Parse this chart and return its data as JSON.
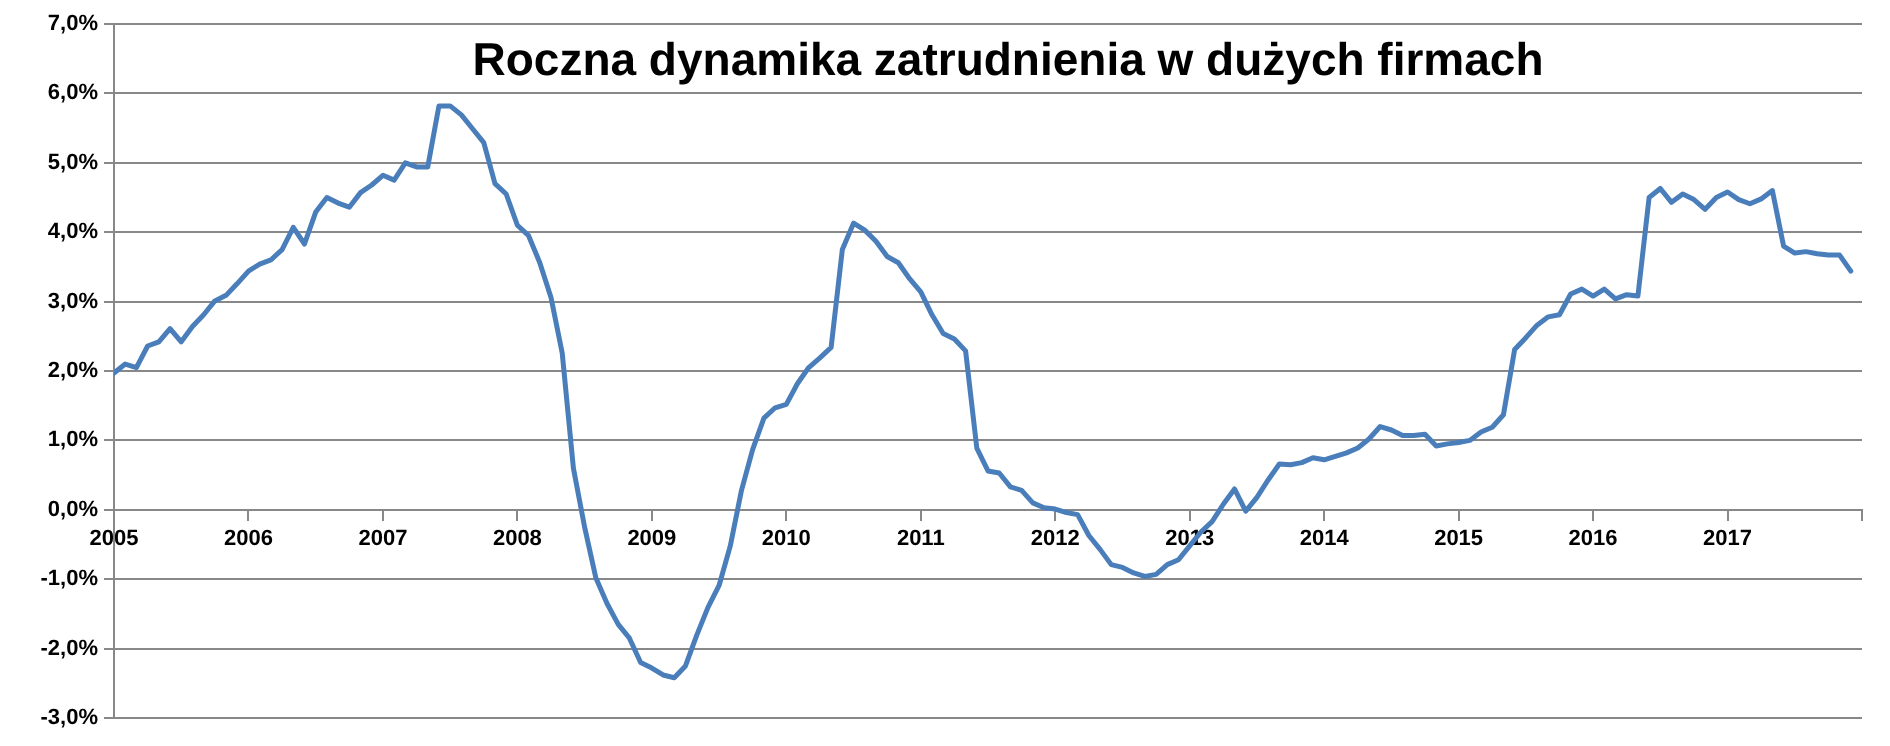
{
  "chart_data": {
    "type": "line",
    "title": "Roczna dynamika zatrudnienia w dużych firmach",
    "x": [
      "2005-01",
      "2005-02",
      "2005-03",
      "2005-04",
      "2005-05",
      "2005-06",
      "2005-07",
      "2005-08",
      "2005-09",
      "2005-10",
      "2005-11",
      "2005-12",
      "2006-01",
      "2006-02",
      "2006-03",
      "2006-04",
      "2006-05",
      "2006-06",
      "2006-07",
      "2006-08",
      "2006-09",
      "2006-10",
      "2006-11",
      "2006-12",
      "2007-01",
      "2007-02",
      "2007-03",
      "2007-04",
      "2007-05",
      "2007-06",
      "2007-07",
      "2007-08",
      "2007-09",
      "2007-10",
      "2007-11",
      "2007-12",
      "2008-01",
      "2008-02",
      "2008-03",
      "2008-04",
      "2008-05",
      "2008-06",
      "2008-07",
      "2008-08",
      "2008-09",
      "2008-10",
      "2008-11",
      "2008-12",
      "2009-01",
      "2009-02",
      "2009-03",
      "2009-04",
      "2009-05",
      "2009-06",
      "2009-07",
      "2009-08",
      "2009-09",
      "2009-10",
      "2009-11",
      "2009-12",
      "2010-01",
      "2010-02",
      "2010-03",
      "2010-04",
      "2010-05",
      "2010-06",
      "2010-07",
      "2010-08",
      "2010-09",
      "2010-10",
      "2010-11",
      "2010-12",
      "2011-01",
      "2011-02",
      "2011-03",
      "2011-04",
      "2011-05",
      "2011-06",
      "2011-07",
      "2011-08",
      "2011-09",
      "2011-10",
      "2011-11",
      "2011-12",
      "2012-01",
      "2012-02",
      "2012-03",
      "2012-04",
      "2012-05",
      "2012-06",
      "2012-07",
      "2012-08",
      "2012-09",
      "2012-10",
      "2012-11",
      "2012-12",
      "2013-01",
      "2013-02",
      "2013-03",
      "2013-04",
      "2013-05",
      "2013-06",
      "2013-07",
      "2013-08",
      "2013-09",
      "2013-10",
      "2013-11",
      "2013-12",
      "2014-01",
      "2014-02",
      "2014-03",
      "2014-04",
      "2014-05",
      "2014-06",
      "2014-07",
      "2014-08",
      "2014-09",
      "2014-10",
      "2014-11",
      "2014-12",
      "2015-01",
      "2015-02",
      "2015-03",
      "2015-04",
      "2015-05",
      "2015-06",
      "2015-07",
      "2015-08",
      "2015-09",
      "2015-10",
      "2015-11",
      "2015-12",
      "2016-01",
      "2016-02",
      "2016-03",
      "2016-04",
      "2016-05",
      "2016-06",
      "2016-07",
      "2016-08",
      "2016-09",
      "2016-10",
      "2016-11",
      "2016-12",
      "2017-01",
      "2017-02",
      "2017-03",
      "2017-04",
      "2017-05",
      "2017-06",
      "2017-07",
      "2017-08",
      "2017-09",
      "2017-10",
      "2017-11",
      "2017-12"
    ],
    "series": [
      {
        "color": "#4a7ebb",
        "values": [
          1.97,
          2.1,
          2.05,
          2.36,
          2.42,
          2.61,
          2.42,
          2.64,
          2.81,
          3.01,
          3.09,
          3.26,
          3.44,
          3.54,
          3.6,
          3.75,
          4.07,
          3.83,
          4.29,
          4.5,
          4.42,
          4.36,
          4.57,
          4.68,
          4.82,
          4.75,
          5.0,
          4.94,
          4.94,
          5.82,
          5.82,
          5.69,
          5.49,
          5.29,
          4.7,
          4.55,
          4.1,
          3.95,
          3.56,
          3.06,
          2.26,
          0.6,
          -0.25,
          -0.98,
          -1.35,
          -1.65,
          -1.85,
          -2.2,
          -2.28,
          -2.38,
          -2.42,
          -2.25,
          -1.81,
          -1.41,
          -1.09,
          -0.52,
          0.28,
          0.87,
          1.32,
          1.47,
          1.52,
          1.82,
          2.05,
          2.19,
          2.34,
          3.75,
          4.13,
          4.03,
          3.87,
          3.65,
          3.56,
          3.33,
          3.14,
          2.81,
          2.54,
          2.46,
          2.29,
          0.89,
          0.56,
          0.53,
          0.33,
          0.28,
          0.1,
          0.03,
          0.01,
          -0.04,
          -0.07,
          -0.37,
          -0.57,
          -0.79,
          -0.83,
          -0.91,
          -0.96,
          -0.93,
          -0.79,
          -0.72,
          -0.52,
          -0.32,
          -0.17,
          0.08,
          0.3,
          -0.02,
          0.18,
          0.43,
          0.66,
          0.65,
          0.68,
          0.75,
          0.72,
          0.77,
          0.82,
          0.89,
          1.02,
          1.2,
          1.15,
          1.07,
          1.07,
          1.09,
          0.92,
          0.95,
          0.97,
          1.0,
          1.12,
          1.19,
          1.37,
          2.31,
          2.48,
          2.66,
          2.78,
          2.81,
          3.11,
          3.18,
          3.08,
          3.18,
          3.04,
          3.1,
          3.08,
          4.5,
          4.63,
          4.43,
          4.55,
          4.47,
          4.33,
          4.5,
          4.58,
          4.47,
          4.41,
          4.48,
          4.6,
          3.8,
          3.7,
          3.72,
          3.69,
          3.67,
          3.67,
          3.44
        ]
      }
    ],
    "xlim": [
      "2005",
      "2018"
    ],
    "xticks": [
      "2005",
      "2006",
      "2007",
      "2008",
      "2009",
      "2010",
      "2011",
      "2012",
      "2013",
      "2014",
      "2015",
      "2016",
      "2017",
      {
        "value": "2018",
        "label": null
      }
    ],
    "ylim": [
      -3,
      7
    ],
    "yticks": [
      {
        "value": -3,
        "label": "-3,0%"
      },
      {
        "value": -2,
        "label": "-2,0%"
      },
      {
        "value": -1,
        "label": "-1,0%"
      },
      {
        "value": 0,
        "label": "0,0%"
      },
      {
        "value": 1,
        "label": "1,0%"
      },
      {
        "value": 2,
        "label": "2,0%"
      },
      {
        "value": 3,
        "label": "3,0%"
      },
      {
        "value": 4,
        "label": "4,0%"
      },
      {
        "value": 5,
        "label": "5,0%"
      },
      {
        "value": 6,
        "label": "6,0%"
      },
      {
        "value": 7,
        "label": "7,0%"
      }
    ],
    "grid": "y",
    "marker": "none",
    "line_style": "solid",
    "legend": false
  }
}
